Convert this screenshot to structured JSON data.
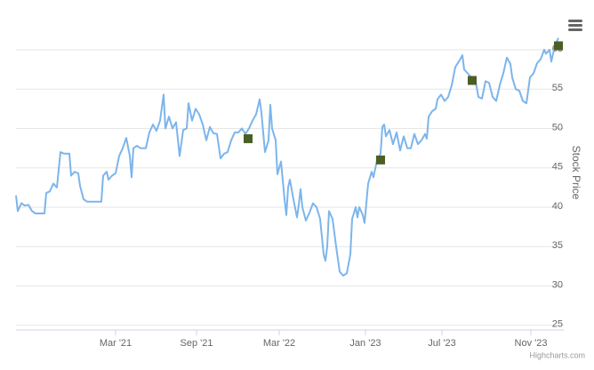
{
  "chart_data": {
    "type": "line",
    "y_axis_title": "Stock Price",
    "credits": "Highcharts.com",
    "xlim": [
      18,
      634
    ],
    "xticks": [
      {
        "value": 130,
        "label": "Mar '21"
      },
      {
        "value": 221,
        "label": "Sep '21"
      },
      {
        "value": 314,
        "label": "Mar '22"
      },
      {
        "value": 411,
        "label": "Jan '23"
      },
      {
        "value": 497,
        "label": "Jul '23"
      },
      {
        "value": 597,
        "label": "Nov '23"
      }
    ],
    "ylim": [
      24.4,
      64.4
    ],
    "yticks": [
      25,
      30,
      35,
      40,
      45,
      50,
      55,
      60
    ],
    "grid": true,
    "series": [
      {
        "color": "#7cb5ec",
        "marker": "none",
        "x": [
          18,
          20,
          24,
          28,
          32,
          36,
          40,
          50,
          52,
          56,
          60,
          64,
          68,
          72,
          78,
          80,
          84,
          88,
          90,
          94,
          98,
          114,
          116,
          120,
          122,
          126,
          130,
          134,
          138,
          142,
          146,
          148,
          150,
          154,
          158,
          164,
          168,
          172,
          176,
          180,
          184,
          186,
          190,
          194,
          198,
          202,
          206,
          210,
          212,
          216,
          220,
          224,
          228,
          232,
          236,
          240,
          244,
          248,
          252,
          256,
          260,
          264,
          268,
          272,
          276,
          280,
          284,
          288,
          292,
          294,
          298,
          302,
          304,
          306,
          310,
          312,
          316,
          320,
          322,
          324,
          326,
          330,
          334,
          336,
          338,
          340,
          344,
          348,
          352,
          356,
          360,
          364,
          366,
          368,
          370,
          374,
          378,
          382,
          386,
          390,
          394,
          396,
          400,
          402,
          404,
          408,
          410,
          414,
          418,
          420,
          424,
          428,
          430,
          432,
          434,
          438,
          442,
          446,
          450,
          454,
          458,
          462,
          466,
          470,
          474,
          478,
          480,
          482,
          486,
          490,
          492,
          496,
          500,
          504,
          508,
          512,
          516,
          520,
          522,
          526,
          530,
          534,
          538,
          542,
          546,
          550,
          554,
          558,
          562,
          566,
          570,
          574,
          576,
          580,
          584,
          588,
          592,
          596,
          600,
          604,
          608,
          612,
          614,
          618,
          620,
          624,
          628
        ],
        "values": [
          41.5,
          39.5,
          40.5,
          40.2,
          40.3,
          39.5,
          39.2,
          39.2,
          41.8,
          42,
          43,
          42.5,
          47,
          46.8,
          46.8,
          44,
          44.5,
          44.3,
          42.7,
          41,
          40.7,
          40.7,
          44,
          44.5,
          43.5,
          44,
          44.3,
          46.5,
          47.5,
          48.8,
          46.5,
          43.8,
          47.5,
          47.8,
          47.5,
          47.5,
          49.5,
          50.5,
          49.7,
          51,
          54.3,
          50,
          51.5,
          50,
          50.8,
          46.5,
          49.8,
          50,
          53.2,
          51,
          52.5,
          51.8,
          50.5,
          48.5,
          50.2,
          49.4,
          49.3,
          46.2,
          46.8,
          47,
          48.5,
          49.5,
          49.5,
          50,
          49.3,
          50,
          51,
          51.8,
          53.7,
          52,
          47,
          48.5,
          53,
          50,
          48.5,
          44.2,
          45.8,
          41,
          39,
          42.5,
          43.5,
          41,
          38.7,
          40.3,
          42.3,
          40,
          38.3,
          39.3,
          40.5,
          40,
          38.5,
          34,
          33.2,
          35,
          39.5,
          38.5,
          35,
          31.8,
          31.3,
          31.6,
          34,
          38.5,
          40,
          38.7,
          40,
          39,
          38,
          43,
          44.5,
          43.8,
          46,
          46.8,
          50.2,
          50.5,
          49,
          49.8,
          48,
          49.5,
          47.2,
          49,
          47.5,
          47.5,
          49.3,
          48,
          48.5,
          49.3,
          48.7,
          51.5,
          52.2,
          52.5,
          53.7,
          54.3,
          53.5,
          54,
          55.5,
          57.8,
          58.5,
          59.3,
          57.5,
          57,
          56.5,
          56.5,
          54,
          53.8,
          56,
          55.8,
          54,
          53.5,
          55.5,
          57,
          59,
          58.2,
          56.5,
          55,
          54.8,
          53.5,
          53.2,
          56.5,
          57,
          58.3,
          58.8,
          60,
          59.5,
          60,
          58.5,
          60.5,
          61.5
        ]
      },
      {
        "color": "#4b5e26",
        "marker": "square",
        "x": [
          279,
          428,
          531,
          628
        ],
        "values": [
          48.7,
          46,
          56.1,
          60.5
        ]
      }
    ]
  }
}
